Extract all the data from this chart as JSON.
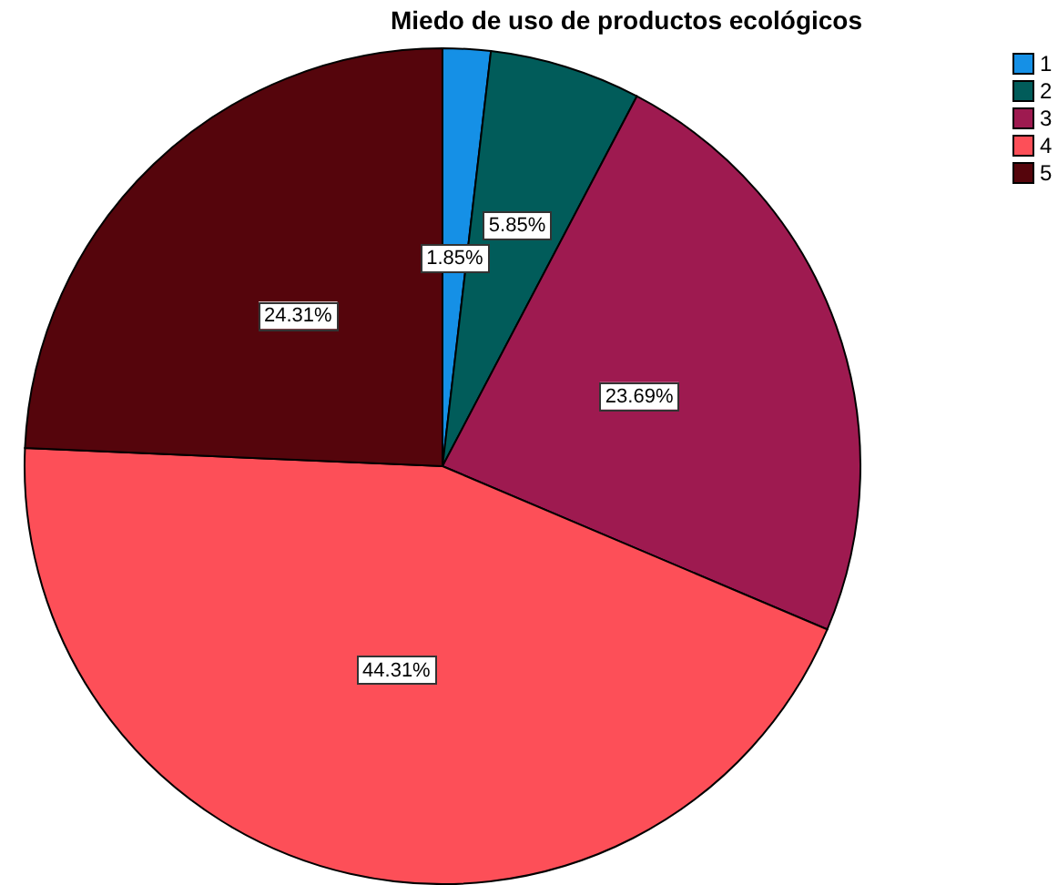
{
  "chart_data": {
    "type": "pie",
    "title": "Miedo de uso de productos ecológicos",
    "categories": [
      "1",
      "2",
      "3",
      "4",
      "5"
    ],
    "values": [
      1.85,
      5.85,
      23.69,
      44.31,
      24.31
    ],
    "value_labels": [
      "1.85%",
      "5.85%",
      "23.69%",
      "44.31%",
      "24.31%"
    ],
    "colors": [
      "#1590e6",
      "#015c5a",
      "#9e1a50",
      "#fd4f58",
      "#55050c"
    ],
    "legend": "top right"
  }
}
